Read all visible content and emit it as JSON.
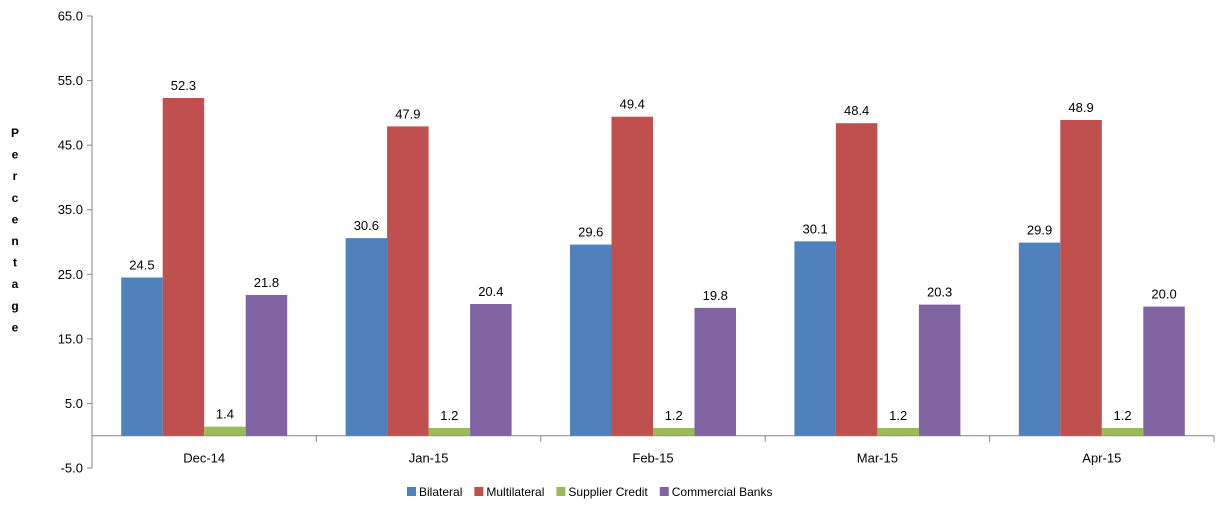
{
  "chart_data": {
    "type": "bar",
    "categories": [
      "Dec-14",
      "Jan-15",
      "Feb-15",
      "Mar-15",
      "Apr-15"
    ],
    "series": [
      {
        "name": "Bilateral",
        "color": "#4F81BD",
        "values": [
          24.5,
          30.6,
          29.6,
          30.1,
          29.9
        ]
      },
      {
        "name": "Multilateral",
        "color": "#C0504D",
        "values": [
          52.3,
          47.9,
          49.4,
          48.4,
          48.9
        ]
      },
      {
        "name": "Supplier Credit",
        "color": "#9BBB59",
        "values": [
          1.4,
          1.2,
          1.2,
          1.2,
          1.2
        ]
      },
      {
        "name": "Commercial Banks",
        "color": "#8064A2",
        "values": [
          21.8,
          20.4,
          19.8,
          20.3,
          20.0
        ]
      }
    ],
    "data_labels": [
      [
        "24.5",
        "30.6",
        "29.6",
        "30.1",
        "29.9"
      ],
      [
        "52.3",
        "47.9",
        "49.4",
        "48.4",
        "48.9"
      ],
      [
        "1.4",
        "1.2",
        "1.2",
        "1.2",
        "1.2"
      ],
      [
        "21.8",
        "20.4",
        "19.8",
        "20.3",
        "20.0"
      ]
    ],
    "y_ticks": [
      "65.0",
      "55.0",
      "45.0",
      "35.0",
      "25.0",
      "15.0",
      "5.0",
      "-5.0"
    ],
    "ylim": [
      -5,
      65
    ],
    "ylabel": "Percentage",
    "xlabel": "",
    "title": "",
    "legend_position": "bottom",
    "grid": false
  }
}
